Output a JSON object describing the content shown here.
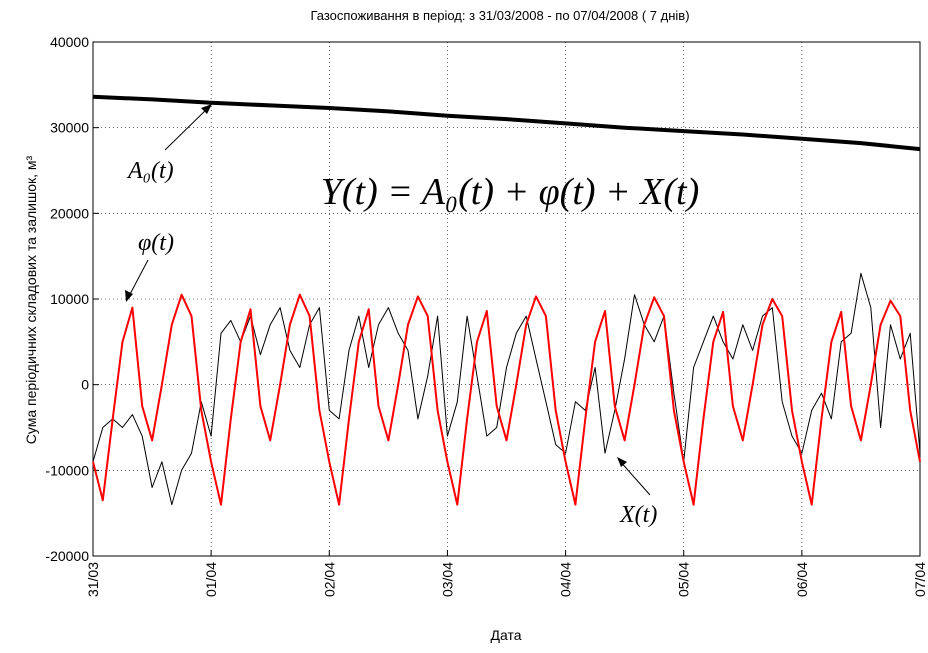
{
  "chart_data": {
    "type": "line",
    "title": "Газоспоживання в період: з 31/03/2008 - по 07/04/2008 ( 7 днів)",
    "x_label": "Дата",
    "y_label": "Сума періодичних складових та залишок, м³",
    "xlim": [
      0,
      168
    ],
    "xticks": [
      {
        "value": 0,
        "label": "31/03"
      },
      {
        "value": 24,
        "label": "01/04"
      },
      {
        "value": 48,
        "label": "02/04"
      },
      {
        "value": 72,
        "label": "03/04"
      },
      {
        "value": 96,
        "label": "04/04"
      },
      {
        "value": 120,
        "label": "05/04"
      },
      {
        "value": 144,
        "label": "06/04"
      },
      {
        "value": 168,
        "label": "07/04"
      }
    ],
    "ylim": [
      -20000,
      40000
    ],
    "yticks": [
      -20000,
      -10000,
      0,
      10000,
      20000,
      30000,
      40000
    ],
    "grid": true,
    "annotations": {
      "a0": "A₀(t)",
      "phi": "φ(t)",
      "x": "X(t)",
      "formula": "Y(t) = A₀(t) + φ(t) + X(t)"
    },
    "series": [
      {
        "name": "X(t)",
        "color": "#000000",
        "width": 1,
        "x": [
          0,
          2,
          4,
          6,
          8,
          10,
          12,
          14,
          16,
          18,
          20,
          22,
          24,
          26,
          28,
          30,
          32,
          34,
          36,
          38,
          40,
          42,
          44,
          46,
          48,
          50,
          52,
          54,
          56,
          58,
          60,
          62,
          64,
          66,
          68,
          70,
          72,
          74,
          76,
          78,
          80,
          82,
          84,
          86,
          88,
          90,
          92,
          94,
          96,
          98,
          100,
          102,
          104,
          106,
          108,
          110,
          112,
          114,
          116,
          118,
          120,
          122,
          124,
          126,
          128,
          130,
          132,
          134,
          136,
          138,
          140,
          142,
          144,
          146,
          148,
          150,
          152,
          154,
          156,
          158,
          160,
          162,
          164,
          166,
          168
        ],
        "values": [
          -9000,
          -5000,
          -4000,
          -5000,
          -3500,
          -6000,
          -12000,
          -9000,
          -14000,
          -10000,
          -8000,
          -2000,
          -6000,
          6000,
          7500,
          5000,
          8000,
          3500,
          7000,
          9000,
          4000,
          2000,
          7000,
          9000,
          -3000,
          -4000,
          4000,
          8000,
          2000,
          7000,
          9000,
          6000,
          4000,
          -4000,
          1000,
          8000,
          -6000,
          -2000,
          8000,
          1000,
          -6000,
          -5000,
          2000,
          6000,
          8000,
          3000,
          -2000,
          -7000,
          -8000,
          -2000,
          -3000,
          2000,
          -8000,
          -3000,
          3000,
          10500,
          7000,
          5000,
          8000,
          -1000,
          -9000,
          2000,
          5000,
          8000,
          5000,
          3000,
          7000,
          4000,
          8000,
          9000,
          -2000,
          -6000,
          -8000,
          -3000,
          -1000,
          -4000,
          5000,
          6000,
          13000,
          9000,
          -5000,
          7000,
          3000,
          6000,
          -8000
        ]
      },
      {
        "name": "φ(t)",
        "color": "#ff0000",
        "width": 2,
        "x": [
          0,
          2,
          4,
          6,
          8,
          10,
          12,
          14,
          16,
          18,
          20,
          22,
          24,
          26,
          28,
          30,
          32,
          34,
          36,
          38,
          40,
          42,
          44,
          46,
          48,
          50,
          52,
          54,
          56,
          58,
          60,
          62,
          64,
          66,
          68,
          70,
          72,
          74,
          76,
          78,
          80,
          82,
          84,
          86,
          88,
          90,
          92,
          94,
          96,
          98,
          100,
          102,
          104,
          106,
          108,
          110,
          112,
          114,
          116,
          118,
          120,
          122,
          124,
          126,
          128,
          130,
          132,
          134,
          136,
          138,
          140,
          142,
          144,
          146,
          148,
          150,
          152,
          154,
          156,
          158,
          160,
          162,
          164,
          166,
          168
        ],
        "values": [
          -9000,
          -13500,
          -4000,
          5000,
          9000,
          -2500,
          -6500,
          0,
          7000,
          10500,
          8000,
          -3000,
          -9000,
          -14000,
          -4000,
          5000,
          8800,
          -2500,
          -6500,
          0,
          7000,
          10500,
          8000,
          -3000,
          -9000,
          -14000,
          -4000,
          5000,
          8800,
          -2500,
          -6500,
          0,
          7000,
          10300,
          8000,
          -3000,
          -9000,
          -14000,
          -4000,
          5000,
          8600,
          -2500,
          -6500,
          0,
          7000,
          10300,
          8000,
          -3000,
          -9000,
          -14000,
          -4000,
          5000,
          8600,
          -2500,
          -6500,
          0,
          7000,
          10200,
          8000,
          -3000,
          -9000,
          -14000,
          -4000,
          5000,
          8500,
          -2500,
          -6500,
          0,
          7000,
          10000,
          8000,
          -3000,
          -9000,
          -14000,
          -4000,
          5000,
          8500,
          -2500,
          -6500,
          0,
          7000,
          9800,
          8000,
          -3000,
          -9000
        ]
      },
      {
        "name": "A₀(t)",
        "color": "#000000",
        "width": 4,
        "x": [
          0,
          12,
          24,
          36,
          48,
          60,
          72,
          84,
          96,
          108,
          120,
          132,
          144,
          156,
          168
        ],
        "values": [
          33600,
          33300,
          32900,
          32600,
          32300,
          31900,
          31400,
          31000,
          30500,
          30000,
          29600,
          29200,
          28700,
          28200,
          27500
        ]
      }
    ]
  }
}
